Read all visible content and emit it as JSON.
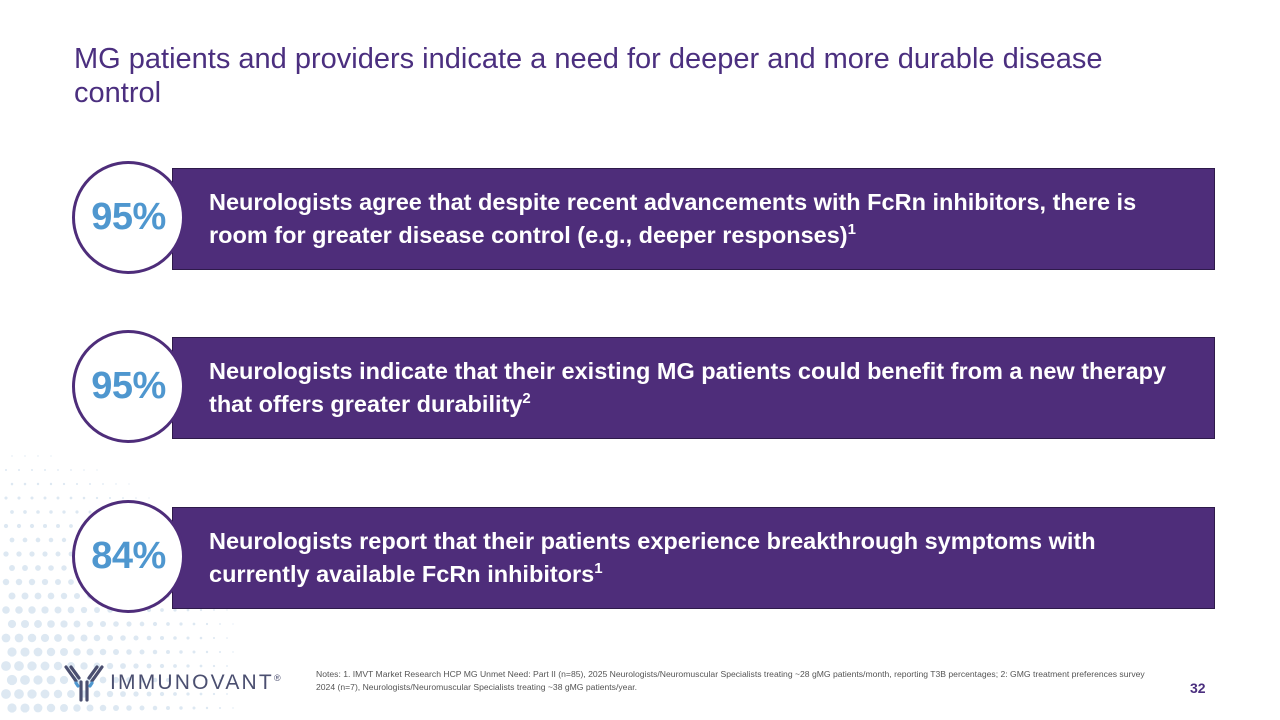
{
  "title": "MG patients and providers indicate a need for deeper and more durable disease control",
  "stats": [
    {
      "value": "95%",
      "text": "Neurologists agree that despite recent advancements with FcRn inhibitors, there is room for greater disease control (e.g., deeper responses)",
      "sup": "1"
    },
    {
      "value": "95%",
      "text": "Neurologists indicate that their existing MG patients could benefit from a new therapy that offers greater durability",
      "sup": "2"
    },
    {
      "value": "84%",
      "text": "Neurologists report that their patients experience breakthrough symptoms with currently available FcRn inhibitors",
      "sup": "1"
    }
  ],
  "logo": {
    "name": "IMMUNOVANT",
    "mark": "®",
    "icon": "antibody-icon"
  },
  "notes": "Notes: 1. IMVT Market Research HCP MG Unmet Need: Part II (n=85), 2025 Neurologists/Neuromuscular Specialists treating ~28 gMG patients/month, reporting T3B percentages; 2: GMG treatment preferences survey 2024 (n=7), Neurologists/Neuromuscular Specialists treating ~38 gMG patients/year.",
  "page_number": "32",
  "colors": {
    "band": "#4e2d7a",
    "percent": "#4f97cf",
    "title": "#4b2f7f"
  }
}
